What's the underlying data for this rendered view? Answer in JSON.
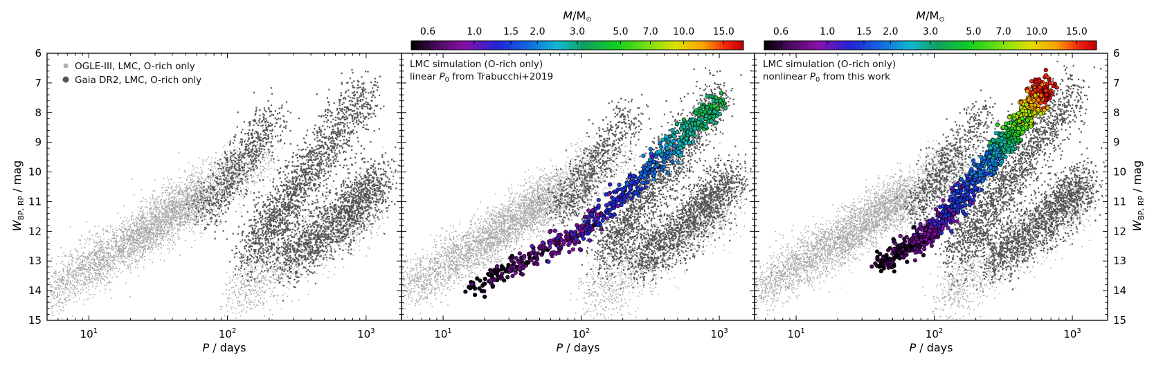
{
  "chart_data": [
    {
      "type": "scatter",
      "panel": "left",
      "xlabel": "P / days",
      "ylabel": "W_BP,RP / mag",
      "xscale": "log",
      "xlim": [
        5,
        1800
      ],
      "ylim": [
        15,
        6
      ],
      "x_tick_labels": [
        "10^1",
        "10^2",
        "10^3"
      ],
      "y_tick_labels": [
        "6",
        "7",
        "8",
        "9",
        "10",
        "11",
        "12",
        "13",
        "14",
        "15"
      ],
      "legend": {
        "position": "top-left",
        "entries": [
          "OGLE-III, LMC, O-rich only",
          "Gaia DR2, LMC, O-rich only"
        ]
      },
      "series": [
        {
          "name": "OGLE-III, LMC, O-rich only",
          "color": "#a9a9a9",
          "sequences": [
            {
              "logP": [
                0.72,
                1.0,
                1.2,
                1.4,
                1.6,
                1.8
              ],
              "W": [
                14.0,
                13.2,
                12.6,
                12.0,
                11.3,
                10.6
              ]
            },
            {
              "logP": [
                1.3,
                1.5,
                1.7,
                1.9,
                2.1
              ],
              "W": [
                12.5,
                11.8,
                11.1,
                10.3,
                9.5
              ]
            },
            {
              "logP": [
                1.7,
                1.9,
                2.1,
                2.3
              ],
              "W": [
                11.6,
                10.9,
                10.2,
                9.4
              ]
            },
            {
              "logP": [
                2.05,
                2.3,
                2.6,
                2.9,
                3.1
              ],
              "W": [
                14.2,
                13.4,
                12.4,
                11.4,
                10.6
              ]
            }
          ]
        },
        {
          "name": "Gaia DR2, LMC, O-rich only",
          "color": "#555555",
          "sequences": [
            {
              "logP": [
                1.85,
                2.0,
                2.15,
                2.35
              ],
              "W": [
                11.5,
                10.3,
                9.3,
                8.0
              ]
            },
            {
              "logP": [
                2.15,
                2.3,
                2.45,
                2.6,
                2.8,
                3.0
              ],
              "W": [
                12.8,
                11.8,
                10.8,
                9.8,
                8.6,
                7.2
              ]
            },
            {
              "logP": [
                2.4,
                2.6,
                2.8,
                2.95,
                3.1
              ],
              "W": [
                13.0,
                12.3,
                11.6,
                10.9,
                10.2
              ]
            }
          ]
        }
      ]
    },
    {
      "type": "scatter",
      "panel": "middle",
      "annotation": [
        "LMC simulation (O-rich only)",
        "linear P_0 from Trabucchi+2019"
      ],
      "xlabel": "P / days",
      "xscale": "log",
      "xlim": [
        5,
        1800
      ],
      "ylim": [
        15,
        6
      ],
      "x_tick_labels": [
        "10^1",
        "10^2",
        "10^3"
      ],
      "colorbar": {
        "label": "M/M_sun",
        "ticks": [
          "0.6",
          "1.0",
          "1.5",
          "2.0",
          "3.0",
          "5.0",
          "7.0",
          "10.0",
          "15.0"
        ]
      },
      "simulation_track": {
        "logP": [
          1.2,
          1.5,
          1.8,
          2.0,
          2.2,
          2.4,
          2.6,
          2.8,
          3.0
        ],
        "W": [
          13.9,
          13.2,
          12.5,
          12.0,
          11.2,
          10.4,
          9.5,
          8.5,
          7.6
        ],
        "mass": [
          0.6,
          0.7,
          0.8,
          0.9,
          1.0,
          1.2,
          1.6,
          2.5,
          3.0
        ]
      }
    },
    {
      "type": "scatter",
      "panel": "right",
      "annotation": [
        "LMC simulation (O-rich only)",
        "nonlinear P_0 from this work"
      ],
      "xlabel": "P / days",
      "ylabel": "W_BP,RP / mag",
      "xscale": "log",
      "xlim": [
        5,
        1800
      ],
      "ylim": [
        15,
        6
      ],
      "x_tick_labels": [
        "10^1",
        "10^2",
        "10^3"
      ],
      "colorbar": {
        "label": "M/M_sun",
        "ticks": [
          "0.6",
          "1.0",
          "1.5",
          "2.0",
          "3.0",
          "5.0",
          "7.0",
          "10.0",
          "15.0"
        ]
      },
      "simulation_track": {
        "logP": [
          1.6,
          1.8,
          2.0,
          2.2,
          2.4,
          2.55,
          2.7,
          2.8
        ],
        "W": [
          13.1,
          12.6,
          11.9,
          10.8,
          9.6,
          8.8,
          7.8,
          7.1
        ],
        "mass": [
          0.6,
          0.7,
          0.9,
          1.1,
          1.6,
          3.0,
          7.0,
          15.0
        ]
      }
    }
  ],
  "labels": {
    "xlabel": "P / days",
    "ylabel": "W",
    "ylabel_sub": "BP, RP",
    "ylabel_unit": " / mag",
    "cb_label": "M/M",
    "cb_sun": "⊙",
    "legend1": "OGLE-III, LMC, O-rich only",
    "legend2": "Gaia DR2, LMC, O-rich only",
    "ann_mid_1": "LMC simulation (O-rich only)",
    "ann_mid_2a": "linear ",
    "ann_mid_2b": " from Trabucchi+2019",
    "ann_right_1": "LMC simulation (O-rich only)",
    "ann_right_2a": "nonlinear ",
    "ann_right_2b": " from this work",
    "p0": "P",
    "p0_sub": "0"
  },
  "colors": {
    "ogle": "#a9a9a9",
    "gaia": "#555555",
    "colormap": [
      "#000000",
      "#5a0a78",
      "#8a10a8",
      "#2020d8",
      "#1070e0",
      "#10b8d0",
      "#10b040",
      "#20e020",
      "#d8e000",
      "#f8a000",
      "#f02010",
      "#c00000"
    ]
  }
}
